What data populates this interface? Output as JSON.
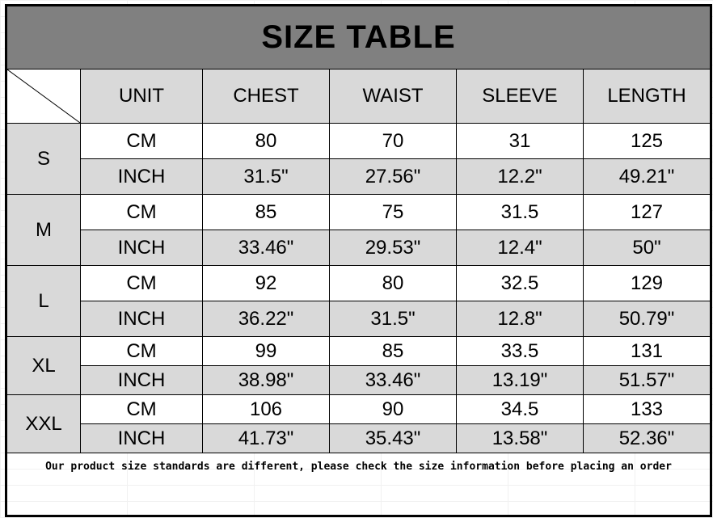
{
  "title": "SIZE TABLE",
  "headers": [
    "UNIT",
    "CHEST",
    "WAIST",
    "SLEEVE",
    "LENGTH"
  ],
  "sizes": [
    {
      "size": "S",
      "rows": [
        [
          "CM",
          "80",
          "70",
          "31",
          "125"
        ],
        [
          "INCH",
          "31.5\"",
          "27.56\"",
          "12.2\"",
          "49.21\""
        ]
      ]
    },
    {
      "size": "M",
      "rows": [
        [
          "CM",
          "85",
          "75",
          "31.5",
          "127"
        ],
        [
          "INCH",
          "33.46\"",
          "29.53\"",
          "12.4\"",
          "50\""
        ]
      ]
    },
    {
      "size": "L",
      "rows": [
        [
          "CM",
          "92",
          "80",
          "32.5",
          "129"
        ],
        [
          "INCH",
          "36.22\"",
          "31.5\"",
          "12.8\"",
          "50.79\""
        ]
      ]
    },
    {
      "size": "XL",
      "rows": [
        [
          "CM",
          "99",
          "85",
          "33.5",
          "131"
        ],
        [
          "INCH",
          "38.98\"",
          "33.46\"",
          "13.19\"",
          "51.57\""
        ]
      ]
    },
    {
      "size": "XXL",
      "rows": [
        [
          "CM",
          "106",
          "90",
          "34.5",
          "133"
        ],
        [
          "INCH",
          "41.73\"",
          "35.43\"",
          "13.58\"",
          "52.36\""
        ]
      ]
    }
  ],
  "note": "Our product size standards are different, please check the size information before placing an order",
  "colors": {
    "title_bg": "#808080",
    "header_bg": "#d9d9d9",
    "border": "#000000"
  }
}
